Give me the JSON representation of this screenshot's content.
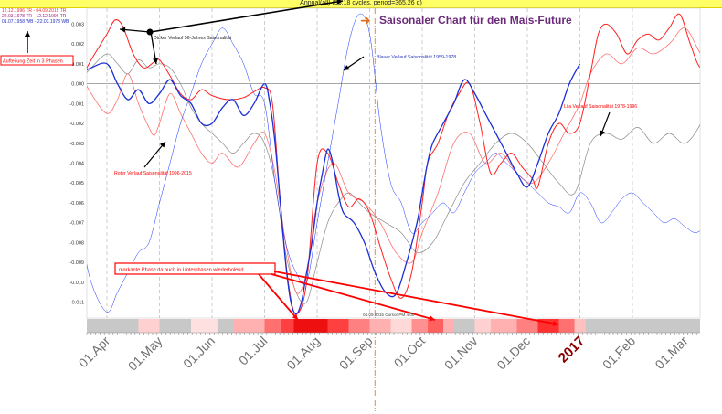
{
  "window": {
    "top_label": "Annual(all) (56,18 cycles, period=365,26 d)",
    "legend_lines": [
      {
        "text": "12.12.1996 TR - 04.09.2015 TR",
        "color": "#e03030"
      },
      {
        "text": "22.03.1978 TR - 12.12.1996 TR",
        "color": "#a02080"
      },
      {
        "text": "01.07.1958 WB - 22.03.1978 WB",
        "color": "#2030c0"
      }
    ]
  },
  "colors": {
    "red_series": "#ff2020",
    "pink_series": "#ff7070",
    "gray_series": "#8a8a8a",
    "blue_series": "#1030ff",
    "annotation": "#ff0000",
    "title": "#6b2a7a",
    "year_label": "#8b0000"
  },
  "annotations": [
    {
      "id": "aufteilung",
      "text": "Aufteilung Zeit in 3 Phasen",
      "boxed": true
    },
    {
      "id": "dicker",
      "text": "Dicker Verlauf 56-Jahres Saisonalität",
      "boxed": false
    },
    {
      "id": "blauer",
      "text": "Blauer Verlauf Saisonalität 1959-1978",
      "boxed": false
    },
    {
      "id": "roter",
      "text": "Roter Verlauf Saisonalität 1996-2015",
      "boxed": false
    },
    {
      "id": "lila",
      "text": "Lila Verlauf Saisonalität 1978-1996",
      "boxed": false
    },
    {
      "id": "markante",
      "text": "markante Phase da auch in Unterphasen wiederholend",
      "boxed": true
    },
    {
      "id": "cursor",
      "text": "04.09.2015 Cursor PM 4.00",
      "boxed": false
    }
  ],
  "chart_data": {
    "type": "line",
    "title": "Saisonaler Chart für den Mais-Future",
    "ylim": [
      -0.0118,
      0.0038
    ],
    "y_ticks": [
      "0.003",
      "0.002",
      "0.001",
      "0.000",
      "-0.001",
      "-0.002",
      "-0.003",
      "-0.004",
      "-0.005",
      "-0.006",
      "-0.007",
      "-0.008",
      "-0.009",
      "-0.010",
      "-0.011"
    ],
    "x_tick_labels": [
      "01.Apr",
      "01.May",
      "01.Jun",
      "01.Jul",
      "01.Aug",
      "01.Sep",
      "01.Oct",
      "01.Nov",
      "01.Dec",
      "2017",
      "01.Feb",
      "01.Mar"
    ],
    "x_months": [
      0,
      1,
      2,
      3,
      4,
      5,
      6,
      7,
      8,
      9,
      10,
      11
    ],
    "marker_line_month": 5.1,
    "grid": "dashed vertical at month starts; horizontal zero line",
    "series": [
      {
        "key": "red",
        "x": [
          -0.5,
          -0.3,
          0,
          0.15,
          0.3,
          0.5,
          0.7,
          0.9,
          1.0,
          1.2,
          1.4,
          1.6,
          1.8,
          2.0,
          2.3,
          2.6,
          2.8,
          3.0,
          3.15,
          3.3,
          3.45,
          3.6,
          3.8,
          4.0,
          4.2,
          4.4,
          4.6,
          4.8,
          5.0,
          5.2,
          5.4,
          5.6,
          5.8,
          6.0,
          6.1,
          6.3,
          6.5,
          6.7,
          6.9,
          7.1,
          7.3,
          7.5,
          7.7,
          7.9,
          8.1,
          8.2,
          8.4,
          8.6,
          8.8,
          9.0,
          9.2,
          9.35,
          9.5,
          9.7,
          9.9,
          10.1,
          10.3,
          10.5,
          10.7,
          10.9,
          11.1,
          11.3,
          11.5
        ],
        "values": [
          0.0002,
          0.0012,
          0.0025,
          0.0032,
          0.0029,
          0.0015,
          0.0008,
          0.0011,
          0.0012,
          0.0004,
          -0.0005,
          -0.0008,
          -0.0003,
          -0.0006,
          -0.0008,
          -0.0007,
          -0.0004,
          -0.0002,
          -0.001,
          -0.006,
          -0.01,
          -0.0116,
          -0.01,
          -0.004,
          -0.0035,
          -0.005,
          -0.0062,
          -0.0058,
          -0.0065,
          -0.0082,
          -0.0098,
          -0.0108,
          -0.0095,
          -0.006,
          -0.004,
          -0.003,
          -0.0015,
          -0.0005,
          0.0,
          -0.002,
          -0.0045,
          -0.004,
          -0.0035,
          -0.0042,
          -0.0048,
          -0.0052,
          -0.003,
          -0.002,
          -0.0025,
          -0.002,
          0.0005,
          0.0025,
          0.003,
          0.0025,
          0.0015,
          0.0022,
          0.0025,
          0.0022,
          0.0028,
          0.0035,
          0.002,
          0.0008,
          0.0015
        ]
      },
      {
        "key": "pink",
        "x": [
          -0.5,
          -0.3,
          0,
          0.2,
          0.4,
          0.6,
          0.8,
          0.9,
          1.0,
          1.2,
          1.4,
          1.6,
          1.8,
          2.0,
          2.2,
          2.5,
          2.8,
          3.0,
          3.2,
          3.4,
          3.6,
          3.8,
          4.0,
          4.3,
          4.6,
          4.9,
          5.2,
          5.5,
          5.8,
          6.0,
          6.3,
          6.6,
          6.9,
          7.2,
          7.5,
          7.8,
          8.1,
          8.4,
          8.7,
          9.0,
          9.2,
          9.5,
          9.8,
          10.1,
          10.4,
          10.7,
          11.0,
          11.3,
          11.5
        ],
        "values": [
          0.0005,
          -0.0005,
          -0.0015,
          -0.0008,
          0.0005,
          -0.001,
          -0.0022,
          -0.0026,
          -0.002,
          -0.0005,
          -0.0015,
          -0.0025,
          -0.0035,
          -0.004,
          -0.0035,
          -0.0042,
          -0.003,
          -0.0025,
          -0.0045,
          -0.008,
          -0.0105,
          -0.0095,
          -0.006,
          -0.004,
          -0.0055,
          -0.006,
          -0.007,
          -0.0085,
          -0.009,
          -0.0075,
          -0.0055,
          -0.003,
          -0.0025,
          -0.004,
          -0.0035,
          -0.0045,
          -0.005,
          -0.004,
          -0.0025,
          -0.001,
          0.0005,
          0.0015,
          0.001,
          0.0018,
          0.0015,
          0.002,
          0.0028,
          0.0015,
          0.0012
        ]
      },
      {
        "key": "gray",
        "x": [
          -0.5,
          -0.3,
          0,
          0.2,
          0.4,
          0.6,
          0.8,
          1.0,
          1.2,
          1.4,
          1.6,
          1.8,
          2.0,
          2.2,
          2.4,
          2.6,
          2.8,
          3.0,
          3.2,
          3.4,
          3.6,
          3.8,
          4.0,
          4.2,
          4.4,
          4.6,
          4.8,
          5.0,
          5.3,
          5.6,
          5.9,
          6.2,
          6.5,
          6.8,
          7.1,
          7.4,
          7.7,
          8.0,
          8.3,
          8.6,
          8.9,
          9.2,
          9.5,
          9.8,
          10.1,
          10.4,
          10.7,
          11.0,
          11.3,
          11.5
        ],
        "values": [
          0.0002,
          0.0008,
          0.0015,
          0.001,
          0.0005,
          0.0012,
          0.0008,
          0.001,
          0.0008,
          0.0,
          -0.0012,
          -0.002,
          -0.0025,
          -0.003,
          -0.0035,
          -0.003,
          -0.0025,
          -0.003,
          -0.005,
          -0.0085,
          -0.0105,
          -0.011,
          -0.009,
          -0.007,
          -0.006,
          -0.0055,
          -0.006,
          -0.0065,
          -0.007,
          -0.0075,
          -0.0085,
          -0.008,
          -0.0065,
          -0.005,
          -0.004,
          -0.003,
          -0.0025,
          -0.003,
          -0.004,
          -0.005,
          -0.0055,
          -0.003,
          -0.0025,
          -0.0028,
          -0.0022,
          -0.003,
          -0.0025,
          -0.003,
          -0.002,
          -0.0005
        ]
      },
      {
        "key": "blue_thick",
        "x": [
          -0.5,
          -0.3,
          0,
          0.2,
          0.4,
          0.6,
          0.8,
          1.0,
          1.2,
          1.4,
          1.6,
          1.8,
          2.0,
          2.2,
          2.4,
          2.6,
          2.8,
          3.0,
          3.1,
          3.2,
          3.3,
          3.4,
          3.5,
          3.6,
          3.7,
          3.8,
          3.9,
          4.0,
          4.1,
          4.2,
          4.3,
          4.4,
          4.5,
          4.7,
          4.9,
          5.1,
          5.3,
          5.5,
          5.7,
          5.9,
          6.0,
          6.1,
          6.2,
          6.4,
          6.6,
          6.8,
          7.0,
          7.2,
          7.4,
          7.6,
          7.8,
          8.0,
          8.2,
          8.4,
          8.6,
          8.8,
          9.0
        ],
        "values": [
          0.0005,
          0.0008,
          0.001,
          0.0,
          -0.0008,
          -0.0003,
          -0.001,
          -0.0005,
          0.0002,
          -0.0006,
          -0.001,
          -0.002,
          -0.002,
          -0.0012,
          -0.0008,
          -0.0016,
          -0.001,
          0.0,
          -0.001,
          -0.003,
          -0.006,
          -0.009,
          -0.011,
          -0.0116,
          -0.011,
          -0.0095,
          -0.008,
          -0.006,
          -0.0045,
          -0.0033,
          -0.004,
          -0.0055,
          -0.0065,
          -0.007,
          -0.008,
          -0.0095,
          -0.0105,
          -0.0106,
          -0.009,
          -0.007,
          -0.0055,
          -0.004,
          -0.003,
          -0.002,
          -0.001,
          0.0002,
          -0.0005,
          -0.0015,
          -0.0025,
          -0.0035,
          -0.0045,
          -0.0052,
          -0.004,
          -0.0025,
          -0.0015,
          0.0,
          0.001
        ]
      },
      {
        "key": "blue_thin",
        "x": [
          -0.5,
          -0.3,
          0,
          0.2,
          0.4,
          0.6,
          0.8,
          1.0,
          1.2,
          1.4,
          1.6,
          1.8,
          2.0,
          2.2,
          2.4,
          2.6,
          2.8,
          3.0,
          3.2,
          3.4,
          3.6,
          3.8,
          4.0,
          4.2,
          4.4,
          4.6,
          4.8,
          5.0,
          5.2,
          5.4,
          5.6,
          5.8,
          6.0,
          6.2,
          6.4,
          6.6,
          6.8,
          7.0,
          7.2,
          7.4,
          7.6,
          7.8,
          8.0,
          8.2,
          8.4,
          8.6,
          8.8,
          9.0,
          9.2,
          9.4,
          9.6,
          9.8,
          10.0,
          10.2,
          10.4,
          10.6,
          10.8,
          11.0,
          11.2,
          11.4
        ],
        "values": [
          -0.0075,
          -0.01,
          -0.0115,
          -0.0105,
          -0.0095,
          -0.0085,
          -0.008,
          -0.006,
          -0.004,
          -0.002,
          -0.0005,
          0.001,
          0.002,
          0.0028,
          0.002,
          0.001,
          -0.0005,
          -0.001,
          -0.005,
          -0.008,
          -0.0095,
          -0.01,
          -0.007,
          -0.004,
          -0.001,
          0.002,
          0.0035,
          0.0025,
          -0.002,
          -0.005,
          -0.006,
          -0.0075,
          -0.007,
          -0.0065,
          -0.006,
          -0.0065,
          -0.0055,
          -0.0045,
          -0.004,
          -0.0035,
          -0.004,
          -0.0045,
          -0.005,
          -0.0055,
          -0.006,
          -0.0062,
          -0.0065,
          -0.0055,
          -0.006,
          -0.007,
          -0.0065,
          -0.0058,
          -0.0055,
          -0.006,
          -0.0065,
          -0.007,
          -0.0068,
          -0.0072,
          -0.0075,
          -0.0072
        ]
      }
    ]
  },
  "phase_bar": {
    "segments": [
      {
        "start": -0.5,
        "end": 0.6,
        "color": "#c8c8c8"
      },
      {
        "start": 0.6,
        "end": 1.0,
        "color": "#ffd0d0"
      },
      {
        "start": 1.0,
        "end": 1.6,
        "color": "#c8c8c8"
      },
      {
        "start": 1.6,
        "end": 2.1,
        "color": "#ffe0e0"
      },
      {
        "start": 2.1,
        "end": 2.4,
        "color": "#c8c8c8"
      },
      {
        "start": 2.4,
        "end": 3.0,
        "color": "#ffb0b0"
      },
      {
        "start": 3.0,
        "end": 3.3,
        "color": "#ff7070"
      },
      {
        "start": 3.3,
        "end": 3.55,
        "color": "#ff4040"
      },
      {
        "start": 3.55,
        "end": 4.2,
        "color": "#ee1010"
      },
      {
        "start": 4.2,
        "end": 4.6,
        "color": "#ff4040"
      },
      {
        "start": 4.6,
        "end": 5.0,
        "color": "#ff8080"
      },
      {
        "start": 5.0,
        "end": 5.4,
        "color": "#ffb0b0"
      },
      {
        "start": 5.4,
        "end": 5.8,
        "color": "#ffd8d8"
      },
      {
        "start": 5.8,
        "end": 6.1,
        "color": "#ff9090"
      },
      {
        "start": 6.1,
        "end": 6.4,
        "color": "#ff6060"
      },
      {
        "start": 6.4,
        "end": 6.6,
        "color": "#ffb0b0"
      },
      {
        "start": 6.6,
        "end": 7.0,
        "color": "#c8c8c8"
      },
      {
        "start": 7.0,
        "end": 7.3,
        "color": "#ffd0d0"
      },
      {
        "start": 7.3,
        "end": 7.8,
        "color": "#ffb0b0"
      },
      {
        "start": 7.8,
        "end": 8.2,
        "color": "#ff8080"
      },
      {
        "start": 8.2,
        "end": 8.6,
        "color": "#ff3030"
      },
      {
        "start": 8.6,
        "end": 8.9,
        "color": "#ff7070"
      },
      {
        "start": 8.9,
        "end": 9.1,
        "color": "#ffc0c0"
      },
      {
        "start": 9.1,
        "end": 11.5,
        "color": "#c8c8c8"
      }
    ]
  }
}
